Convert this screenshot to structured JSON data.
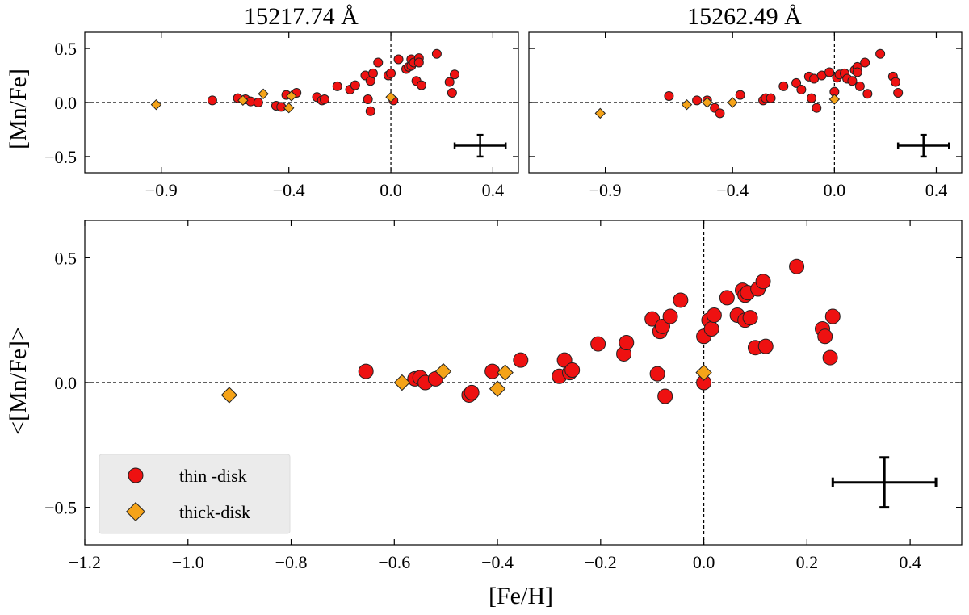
{
  "chart_data": [
    {
      "type": "scatter",
      "panel": "top-left",
      "title": "15217.74 Å",
      "xlabel": "",
      "ylabel": "[Mn/Fe]",
      "xlim": [
        -1.2,
        0.5
      ],
      "ylim": [
        -0.65,
        0.65
      ],
      "xticks": [
        -0.9,
        -0.4,
        0.0,
        0.4
      ],
      "xtick_labels": [
        "−0.9",
        "−0.4",
        "0.0",
        "0.4"
      ],
      "yticks": [
        0.5,
        0.0,
        -0.5
      ],
      "ytick_labels": [
        "0.5",
        "0.0",
        "−0.5"
      ],
      "reference_lines": {
        "x": 0.0,
        "y": 0.0
      },
      "error_bar": {
        "x": 0.35,
        "y": -0.4,
        "xerr": 0.1,
        "yerr": 0.1
      },
      "series": [
        {
          "name": "thin -disk",
          "marker": "circle",
          "color": "#ee1111",
          "x": [
            -0.7,
            -0.6,
            -0.57,
            -0.55,
            -0.52,
            -0.45,
            -0.43,
            -0.41,
            -0.37,
            -0.29,
            -0.27,
            -0.26,
            -0.21,
            -0.16,
            -0.14,
            -0.1,
            -0.09,
            -0.08,
            -0.08,
            -0.07,
            -0.05,
            -0.01,
            0.0,
            0.01,
            0.03,
            0.06,
            0.07,
            0.08,
            0.08,
            0.09,
            0.1,
            0.11,
            0.11,
            0.12,
            0.18,
            0.23,
            0.24,
            0.25
          ],
          "y": [
            0.02,
            0.04,
            0.03,
            0.01,
            0.0,
            -0.03,
            -0.04,
            0.07,
            0.09,
            0.05,
            0.02,
            0.03,
            0.15,
            0.12,
            0.16,
            0.25,
            0.03,
            0.2,
            -0.08,
            0.27,
            0.37,
            0.25,
            0.27,
            0.02,
            0.4,
            0.31,
            0.33,
            0.34,
            0.4,
            0.37,
            0.2,
            0.41,
            0.37,
            0.16,
            0.45,
            0.19,
            0.09,
            0.26
          ]
        },
        {
          "name": "thick-disk",
          "marker": "diamond",
          "color": "#f5a318",
          "x": [
            -0.92,
            -0.58,
            -0.5,
            -0.4,
            -0.39,
            0.0
          ],
          "y": [
            -0.02,
            0.02,
            0.08,
            -0.05,
            0.06,
            0.05
          ]
        }
      ]
    },
    {
      "type": "scatter",
      "panel": "top-right",
      "title": "15262.49 Å",
      "xlabel": "",
      "ylabel": "",
      "xlim": [
        -1.2,
        0.5
      ],
      "ylim": [
        -0.65,
        0.65
      ],
      "xticks": [
        -0.9,
        -0.4,
        0.0,
        0.4
      ],
      "xtick_labels": [
        "−0.9",
        "−0.4",
        "0.0",
        "0.4"
      ],
      "yticks": [
        0.5,
        0.0,
        -0.5
      ],
      "reference_lines": {
        "x": 0.0,
        "y": 0.0
      },
      "error_bar": {
        "x": 0.35,
        "y": -0.4,
        "xerr": 0.1,
        "yerr": 0.1
      },
      "series": [
        {
          "name": "thin -disk",
          "marker": "circle",
          "color": "#ee1111",
          "x": [
            -0.65,
            -0.54,
            -0.5,
            -0.47,
            -0.45,
            -0.37,
            -0.28,
            -0.27,
            -0.25,
            -0.2,
            -0.15,
            -0.13,
            -0.1,
            -0.09,
            -0.08,
            -0.07,
            -0.05,
            -0.02,
            0.0,
            0.01,
            0.02,
            0.04,
            0.05,
            0.07,
            0.08,
            0.09,
            0.09,
            0.1,
            0.12,
            0.13,
            0.18,
            0.23,
            0.24,
            0.25
          ],
          "y": [
            0.06,
            0.02,
            0.02,
            -0.05,
            -0.1,
            0.07,
            0.02,
            0.04,
            0.04,
            0.15,
            0.18,
            0.12,
            0.24,
            0.04,
            0.22,
            -0.05,
            0.25,
            0.28,
            0.1,
            0.23,
            0.26,
            0.27,
            0.22,
            0.2,
            0.3,
            0.33,
            0.28,
            0.15,
            0.37,
            0.08,
            0.45,
            0.24,
            0.19,
            0.09
          ]
        },
        {
          "name": "thick-disk",
          "marker": "diamond",
          "color": "#f5a318",
          "x": [
            -0.92,
            -0.58,
            -0.5,
            -0.4,
            0.0
          ],
          "y": [
            -0.1,
            -0.02,
            0.0,
            0.0,
            0.03
          ]
        }
      ]
    },
    {
      "type": "scatter",
      "panel": "bottom",
      "title": "",
      "xlabel": "[Fe/H]",
      "ylabel": "<[Mn/Fe]>",
      "xlim": [
        -1.2,
        0.5
      ],
      "ylim": [
        -0.65,
        0.65
      ],
      "xticks": [
        -1.2,
        -1.0,
        -0.8,
        -0.6,
        -0.4,
        -0.2,
        0.0,
        0.2,
        0.4
      ],
      "xtick_labels": [
        "−1.2",
        "−1.0",
        "−0.8",
        "−0.6",
        "−0.4",
        "−0.2",
        "0.0",
        "0.2",
        "0.4"
      ],
      "yticks": [
        0.5,
        0.0,
        -0.5
      ],
      "ytick_labels": [
        "0.5",
        "0.0",
        "−0.5"
      ],
      "reference_lines": {
        "x": 0.0,
        "y": 0.0
      },
      "error_bar": {
        "x": 0.35,
        "y": -0.4,
        "xerr": 0.1,
        "yerr": 0.1
      },
      "legend": {
        "position": "lower-left",
        "entries": [
          "thin -disk",
          "thick-disk"
        ]
      },
      "series": [
        {
          "name": "thin -disk",
          "marker": "circle",
          "color": "#ee1111",
          "x": [
            -0.655,
            -0.56,
            -0.55,
            -0.54,
            -0.52,
            -0.455,
            -0.45,
            -0.41,
            -0.355,
            -0.28,
            -0.27,
            -0.26,
            -0.255,
            -0.205,
            -0.155,
            -0.15,
            -0.1,
            -0.09,
            -0.085,
            -0.08,
            -0.075,
            -0.065,
            -0.045,
            0.0,
            0.0,
            0.01,
            0.015,
            0.02,
            0.045,
            0.065,
            0.075,
            0.08,
            0.08,
            0.085,
            0.09,
            0.1,
            0.105,
            0.115,
            0.12,
            0.18,
            0.23,
            0.235,
            0.245,
            0.25
          ],
          "y": [
            0.045,
            0.015,
            0.02,
            0.0,
            0.015,
            -0.05,
            -0.04,
            0.045,
            0.09,
            0.025,
            0.09,
            0.04,
            0.05,
            0.155,
            0.115,
            0.16,
            0.255,
            0.035,
            0.205,
            0.225,
            -0.055,
            0.265,
            0.33,
            0.0,
            0.185,
            0.25,
            0.215,
            0.27,
            0.34,
            0.27,
            0.37,
            0.25,
            0.35,
            0.36,
            0.26,
            0.14,
            0.375,
            0.405,
            0.145,
            0.465,
            0.215,
            0.185,
            0.1,
            0.265
          ]
        },
        {
          "name": "thick-disk",
          "marker": "diamond",
          "color": "#f5a318",
          "x": [
            -0.92,
            -0.585,
            -0.505,
            -0.4,
            -0.385,
            0.0
          ],
          "y": [
            -0.05,
            0.0,
            0.045,
            -0.025,
            0.04,
            0.04
          ]
        }
      ]
    }
  ]
}
